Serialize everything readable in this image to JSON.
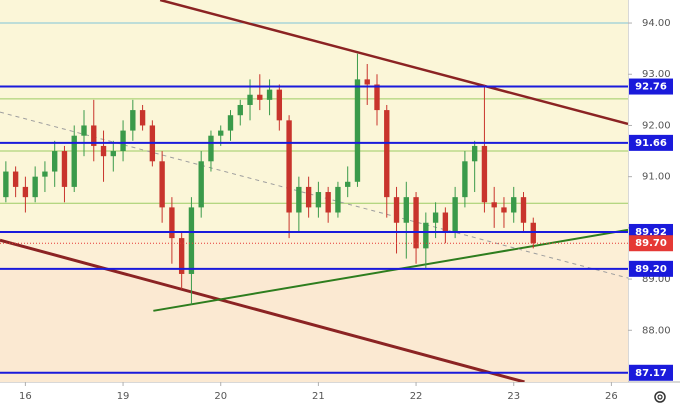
{
  "chart_data": {
    "type": "candlestick",
    "x": [
      -0.2,
      -0.1,
      0,
      0.1,
      0.2,
      0.3,
      0.4,
      0.5,
      0.6,
      0.7,
      0.8,
      0.9,
      1,
      1.1,
      1.2,
      1.3,
      1.4,
      1.5,
      1.6,
      1.7,
      1.8,
      1.9,
      2,
      2.1,
      2.2,
      2.3,
      2.4,
      2.5,
      2.6,
      2.7,
      2.8,
      2.9,
      3,
      3.1,
      3.2,
      3.3,
      3.4,
      3.5,
      3.6,
      3.7,
      3.8,
      3.9,
      4,
      4.1,
      4.2,
      4.3,
      4.4,
      4.5,
      4.6,
      4.7,
      4.8,
      4.9,
      5,
      5.1,
      5.2
    ],
    "open": [
      90.6,
      91.1,
      90.8,
      90.6,
      91.0,
      91.1,
      91.5,
      90.8,
      91.8,
      92.0,
      91.6,
      91.4,
      91.5,
      91.9,
      92.3,
      92.0,
      91.3,
      90.4,
      89.8,
      89.1,
      90.4,
      91.3,
      91.8,
      91.9,
      92.2,
      92.4,
      92.6,
      92.5,
      92.7,
      92.1,
      90.3,
      90.8,
      90.4,
      90.7,
      90.3,
      90.8,
      90.9,
      92.9,
      92.8,
      92.3,
      90.6,
      90.1,
      90.6,
      89.6,
      90.1,
      90.3,
      89.9,
      90.6,
      91.3,
      91.6,
      90.5,
      90.4,
      90.3,
      90.6,
      90.1
    ],
    "high": [
      91.3,
      91.2,
      91.0,
      91.2,
      91.3,
      91.7,
      91.6,
      92.0,
      92.3,
      92.5,
      91.9,
      91.7,
      92.1,
      92.5,
      92.4,
      92.1,
      91.5,
      90.6,
      89.9,
      90.6,
      91.5,
      91.9,
      92.0,
      92.3,
      92.5,
      92.9,
      93.0,
      92.9,
      92.8,
      92.2,
      91.0,
      91.0,
      90.9,
      90.8,
      90.9,
      91.2,
      93.4,
      93.2,
      93.0,
      92.4,
      90.8,
      90.9,
      90.7,
      90.3,
      90.5,
      90.4,
      90.8,
      91.5,
      91.7,
      92.8,
      90.8,
      90.6,
      90.8,
      90.7,
      90.2
    ],
    "low": [
      90.5,
      90.6,
      90.3,
      90.5,
      90.7,
      90.8,
      90.5,
      90.7,
      91.4,
      91.3,
      90.9,
      91.1,
      91.3,
      91.7,
      91.9,
      91.2,
      90.1,
      89.3,
      88.8,
      88.5,
      90.2,
      91.1,
      91.6,
      91.7,
      92.0,
      92.1,
      92.3,
      92.2,
      91.9,
      89.8,
      89.9,
      90.2,
      90.2,
      90.1,
      90.2,
      90.6,
      90.8,
      92.4,
      92.0,
      90.2,
      89.5,
      89.4,
      89.3,
      89.2,
      89.8,
      89.7,
      89.8,
      90.4,
      90.7,
      90.3,
      90.0,
      90.0,
      90.1,
      89.9,
      89.6
    ],
    "close": [
      91.1,
      90.8,
      90.6,
      91.0,
      91.1,
      91.5,
      90.8,
      91.8,
      92.0,
      91.6,
      91.4,
      91.5,
      91.9,
      92.3,
      92.0,
      91.3,
      90.4,
      89.8,
      89.1,
      90.4,
      91.3,
      91.8,
      91.9,
      92.2,
      92.4,
      92.6,
      92.5,
      92.7,
      92.1,
      90.3,
      90.8,
      90.4,
      90.7,
      90.3,
      90.8,
      90.9,
      92.9,
      92.8,
      92.3,
      90.6,
      90.1,
      90.6,
      89.6,
      90.1,
      90.3,
      89.9,
      90.6,
      91.3,
      91.6,
      90.5,
      90.4,
      90.3,
      90.6,
      90.1,
      89.7
    ],
    "up_color": "#3a9a4a",
    "down_color": "#c8342c",
    "xlim": [
      -0.26,
      6.17
    ],
    "ylim": [
      86.99,
      94.45
    ],
    "xticks": [
      {
        "value": 0,
        "label": "16"
      },
      {
        "value": 1,
        "label": "19"
      },
      {
        "value": 2,
        "label": "20"
      },
      {
        "value": 3,
        "label": "21"
      },
      {
        "value": 4,
        "label": "22"
      },
      {
        "value": 5,
        "label": "23"
      },
      {
        "value": 6,
        "label": "26"
      }
    ],
    "yticks": [
      {
        "value": 88,
        "label": "88.00"
      },
      {
        "value": 89,
        "label": "89.00"
      },
      {
        "value": 90,
        "label": "90.00"
      },
      {
        "value": 91,
        "label": "91.00"
      },
      {
        "value": 92,
        "label": "92.00"
      },
      {
        "value": 93,
        "label": "93.00"
      },
      {
        "value": 94,
        "label": "94.00"
      }
    ],
    "zones": [
      {
        "from": 89.92,
        "to": 94.45,
        "color": "#fbf6d8"
      },
      {
        "from": 89.2,
        "to": 89.92,
        "color": "#fcefd6"
      },
      {
        "from": 86.99,
        "to": 89.2,
        "color": "#fbe9d2"
      }
    ],
    "guide_lines": [
      {
        "value": 94.0,
        "color": "#7fc4d8"
      },
      {
        "value": 92.52,
        "color": "#9ccc65"
      },
      {
        "value": 91.5,
        "color": "#9ccc65"
      },
      {
        "value": 90.48,
        "color": "#9ccc65"
      }
    ],
    "levels": [
      {
        "value": 92.76,
        "label": "92.76"
      },
      {
        "value": 91.66,
        "label": "91.66"
      },
      {
        "value": 89.92,
        "label": "89.92"
      },
      {
        "value": 89.2,
        "label": "89.20"
      },
      {
        "value": 87.17,
        "label": "87.17"
      }
    ],
    "level_color": "#1a1adb",
    "price": {
      "value": 89.7,
      "label": "89.70",
      "color": "#e53935"
    },
    "trend_lines": [
      {
        "x": [
          1.38,
          6.17
        ],
        "y": [
          94.45,
          92.03
        ],
        "color": "#8b2323",
        "width": 2.5,
        "dashed": false
      },
      {
        "x": [
          -0.26,
          5.11
        ],
        "y": [
          89.76,
          86.99
        ],
        "color": "#8b2323",
        "width": 3,
        "dashed": false
      },
      {
        "x": [
          1.31,
          6.17
        ],
        "y": [
          88.38,
          89.96
        ],
        "color": "#2e7d1e",
        "width": 2,
        "dashed": false
      },
      {
        "x": [
          -0.26,
          6.17
        ],
        "y": [
          92.26,
          89.02
        ],
        "color": "#9e9e9e",
        "width": 1,
        "dashed": true
      }
    ]
  }
}
